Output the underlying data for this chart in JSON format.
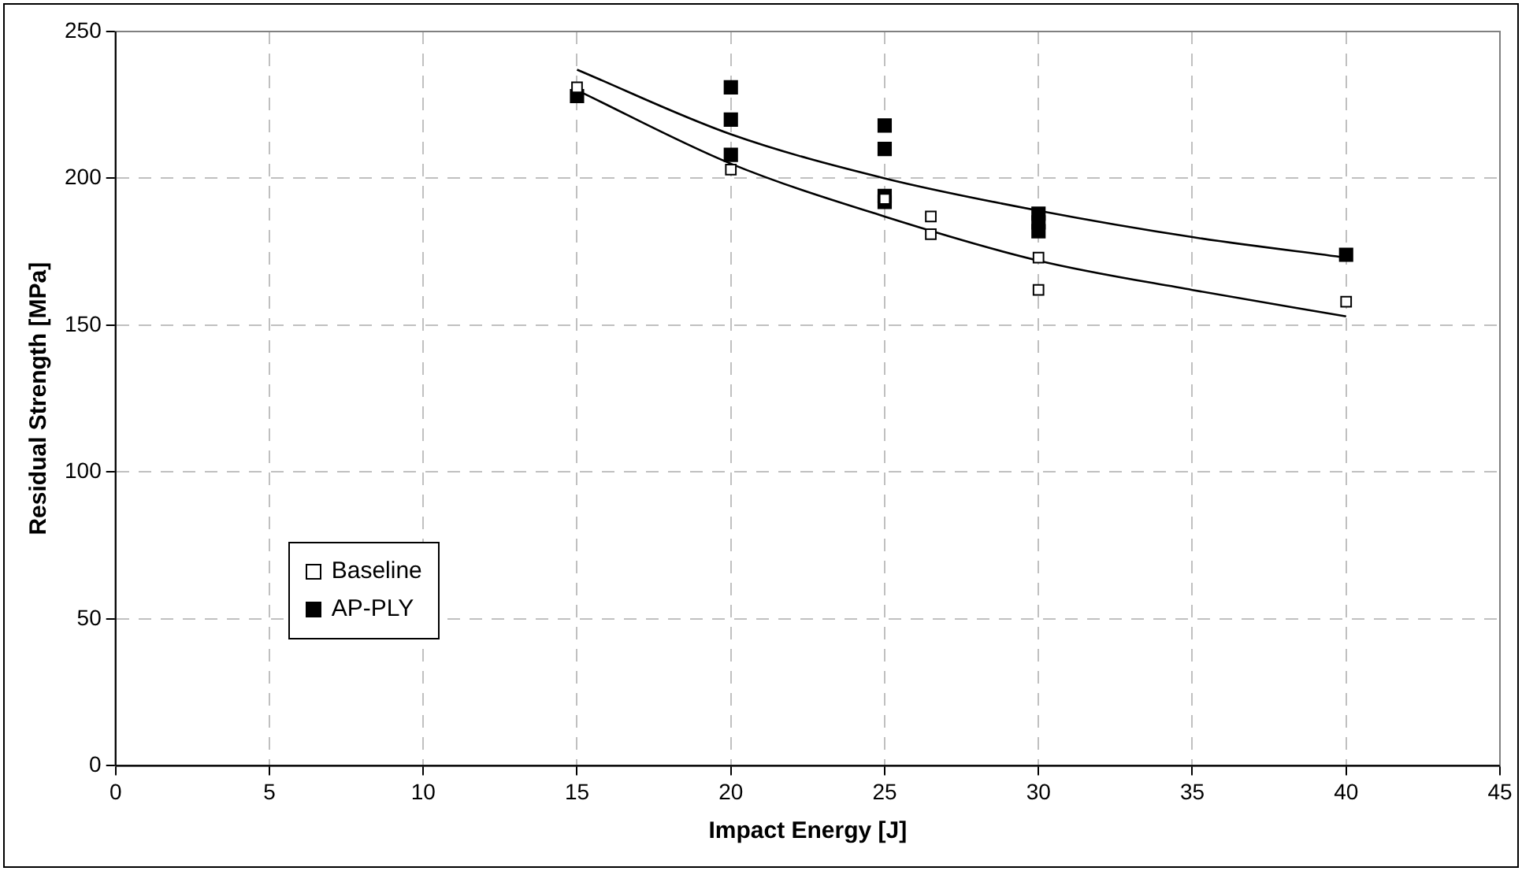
{
  "chart_data": {
    "type": "scatter",
    "xlabel": "Impact Energy [J]",
    "ylabel": "Residual Strength [MPa]",
    "xlim": [
      0,
      45
    ],
    "xticks": [
      0,
      5,
      10,
      15,
      20,
      25,
      30,
      35,
      40,
      45
    ],
    "ylim": [
      0,
      250
    ],
    "yticks": [
      0,
      50,
      100,
      150,
      200,
      250
    ],
    "grid": true,
    "legend": "bottom left",
    "series": [
      {
        "name": "Baseline",
        "color": "#ffffff",
        "marker": "square",
        "x": [
          15,
          20,
          25,
          26.5,
          26.5,
          30,
          30,
          40
        ],
        "values": [
          231,
          203,
          193,
          187,
          181,
          173,
          162,
          158
        ]
      },
      {
        "name": "AP-PLY",
        "color": "#000000",
        "marker": "square",
        "x": [
          15,
          20,
          20,
          20,
          25,
          25,
          25,
          25,
          30,
          30,
          30,
          40
        ],
        "values": [
          228,
          231,
          220,
          208,
          218,
          210,
          194,
          192,
          188,
          185,
          182,
          174
        ]
      },
      {
        "type": "line",
        "color": "#000000",
        "marker": "none",
        "x": [
          15,
          20,
          25,
          30,
          35,
          40
        ],
        "values": [
          230,
          205,
          187,
          172,
          162,
          153
        ]
      },
      {
        "type": "line",
        "color": "#000000",
        "marker": "none",
        "x": [
          15,
          20,
          25,
          30,
          35,
          40
        ],
        "values": [
          237,
          215,
          200,
          189,
          180,
          173
        ]
      }
    ]
  }
}
